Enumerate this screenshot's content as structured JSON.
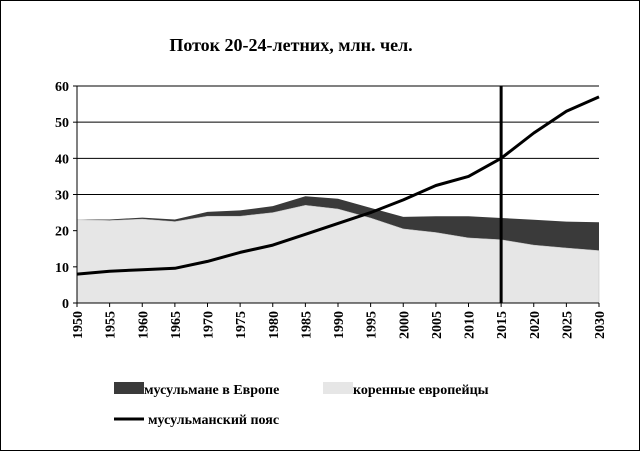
{
  "chart_data": {
    "type": "area",
    "title": "Поток 20-24-летних, млн. чел.",
    "xlabel": "",
    "ylabel": "",
    "ylim": [
      0,
      60
    ],
    "xlim": [
      1950,
      2030
    ],
    "y_ticks": [
      "0",
      "10",
      "20",
      "30",
      "40",
      "50",
      "60"
    ],
    "x_ticks": [
      "1950",
      "1955",
      "1960",
      "1965",
      "1970",
      "1975",
      "1980",
      "1985",
      "1990",
      "1995",
      "2000",
      "2005",
      "2010",
      "2015",
      "2020",
      "2025",
      "2030"
    ],
    "grid": true,
    "legend_position": "bottom",
    "marker_year": 2015,
    "x": [
      1950,
      1955,
      1960,
      1965,
      1970,
      1975,
      1980,
      1985,
      1990,
      1995,
      2000,
      2005,
      2010,
      2015,
      2020,
      2025,
      2030
    ],
    "series": [
      {
        "name": "коренные европейцы",
        "kind": "area",
        "color": "#e6e6e6",
        "values": [
          23,
          22.8,
          23.2,
          22.5,
          24,
          24,
          25,
          27,
          26,
          23.5,
          20.5,
          19.5,
          18,
          17.5,
          16,
          15.2,
          14.5
        ]
      },
      {
        "name": "мусульмане в Европе",
        "kind": "area-stacked",
        "color": "#3a3a3a",
        "values": [
          0.1,
          0.3,
          0.4,
          0.6,
          1.2,
          1.6,
          1.8,
          2.5,
          2.8,
          2.8,
          3.3,
          4.5,
          6,
          6,
          7,
          7.3,
          7.8
        ]
      },
      {
        "name": "мусульманский пояс",
        "kind": "line",
        "color": "#000000",
        "values": [
          8,
          8.8,
          9.2,
          9.6,
          11.5,
          14,
          16,
          19,
          22,
          25,
          28.5,
          32.5,
          35,
          40,
          47,
          53,
          57
        ]
      }
    ]
  }
}
